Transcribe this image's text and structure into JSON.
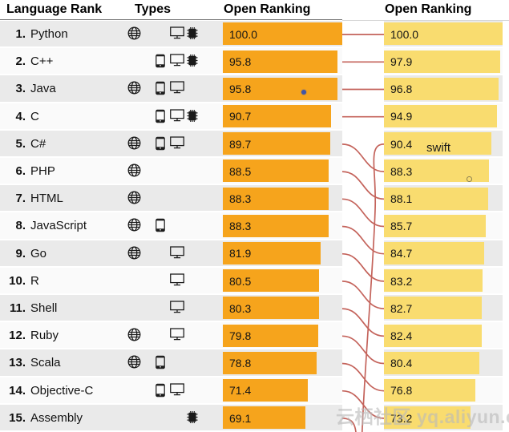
{
  "header": {
    "language_rank": "Language Rank",
    "types": "Types",
    "open_ranking_left": "Open Ranking",
    "open_ranking_right": "Open Ranking"
  },
  "colors": {
    "left_bar": "#F6A41C",
    "right_bar": "#F9DC6F",
    "row_odd": "#EAEAEA",
    "row_even": "#FAFAFA",
    "connector": "#C4635B"
  },
  "left_table": {
    "rows": [
      {
        "rank": "1.",
        "name": "Python",
        "types": [
          "globe-icon",
          "monitor-icon",
          "chip-icon"
        ],
        "value": "100.0",
        "score": 100.0
      },
      {
        "rank": "2.",
        "name": "C++",
        "types": [
          "phone-icon",
          "monitor-icon",
          "chip-icon"
        ],
        "value": "95.8",
        "score": 95.8
      },
      {
        "rank": "3.",
        "name": "Java",
        "types": [
          "globe-icon",
          "phone-icon",
          "monitor-icon"
        ],
        "value": "95.8",
        "score": 95.8
      },
      {
        "rank": "4.",
        "name": "C",
        "types": [
          "phone-icon",
          "monitor-icon",
          "chip-icon"
        ],
        "value": "90.7",
        "score": 90.7
      },
      {
        "rank": "5.",
        "name": "C#",
        "types": [
          "globe-icon",
          "phone-icon",
          "monitor-icon"
        ],
        "value": "89.7",
        "score": 89.7
      },
      {
        "rank": "6.",
        "name": "PHP",
        "types": [
          "globe-icon"
        ],
        "value": "88.5",
        "score": 88.5
      },
      {
        "rank": "7.",
        "name": "HTML",
        "types": [
          "globe-icon"
        ],
        "value": "88.3",
        "score": 88.3
      },
      {
        "rank": "8.",
        "name": "JavaScript",
        "types": [
          "globe-icon",
          "phone-icon"
        ],
        "value": "88.3",
        "score": 88.3
      },
      {
        "rank": "9.",
        "name": "Go",
        "types": [
          "globe-icon",
          "monitor-icon"
        ],
        "value": "81.9",
        "score": 81.9
      },
      {
        "rank": "10.",
        "name": "R",
        "types": [
          "monitor-icon"
        ],
        "value": "80.5",
        "score": 80.5
      },
      {
        "rank": "11.",
        "name": "Shell",
        "types": [
          "monitor-icon"
        ],
        "value": "80.3",
        "score": 80.3
      },
      {
        "rank": "12.",
        "name": "Ruby",
        "types": [
          "globe-icon",
          "monitor-icon"
        ],
        "value": "79.8",
        "score": 79.8
      },
      {
        "rank": "13.",
        "name": "Scala",
        "types": [
          "globe-icon",
          "phone-icon"
        ],
        "value": "78.8",
        "score": 78.8
      },
      {
        "rank": "14.",
        "name": "Objective-C",
        "types": [
          "phone-icon",
          "monitor-icon"
        ],
        "value": "71.4",
        "score": 71.4
      },
      {
        "rank": "15.",
        "name": "Assembly",
        "types": [
          "chip-icon"
        ],
        "value": "69.1",
        "score": 69.1
      }
    ]
  },
  "right_column": {
    "rows": [
      {
        "value": "100.0",
        "score": 100.0
      },
      {
        "value": "97.9",
        "score": 97.9
      },
      {
        "value": "96.8",
        "score": 96.8
      },
      {
        "value": "94.9",
        "score": 94.9
      },
      {
        "value": "90.4",
        "score": 90.4
      },
      {
        "value": "88.3",
        "score": 88.3
      },
      {
        "value": "88.1",
        "score": 88.1
      },
      {
        "value": "85.7",
        "score": 85.7
      },
      {
        "value": "84.7",
        "score": 84.7
      },
      {
        "value": "83.2",
        "score": 83.2
      },
      {
        "value": "82.7",
        "score": 82.7
      },
      {
        "value": "82.4",
        "score": 82.4
      },
      {
        "value": "80.4",
        "score": 80.4
      },
      {
        "value": "76.8",
        "score": 76.8
      },
      {
        "value": "73.2",
        "score": 73.2
      }
    ]
  },
  "connections": {
    "pairs": [
      [
        1,
        1
      ],
      [
        2,
        2
      ],
      [
        3,
        3
      ],
      [
        4,
        4
      ],
      [
        5,
        6
      ],
      [
        6,
        7
      ],
      [
        7,
        8
      ],
      [
        8,
        9
      ],
      [
        9,
        10
      ],
      [
        10,
        11
      ],
      [
        11,
        12
      ],
      [
        12,
        13
      ],
      [
        13,
        14
      ],
      [
        14,
        15
      ]
    ],
    "exit_bottom_left_rank": 15,
    "enter_bottom_right_rank": 5
  },
  "annotations": {
    "swift_label": "swift",
    "watermark": "云栖社区 yq.aliyun.com"
  },
  "chart_data": [
    {
      "type": "bar",
      "orientation": "horizontal",
      "title": "Open Ranking",
      "categories": [
        "Python",
        "C++",
        "Java",
        "C",
        "C#",
        "PHP",
        "HTML",
        "JavaScript",
        "Go",
        "R",
        "Shell",
        "Ruby",
        "Scala",
        "Objective-C",
        "Assembly"
      ],
      "values": [
        100.0,
        95.8,
        95.8,
        90.7,
        89.7,
        88.5,
        88.3,
        88.3,
        81.9,
        80.5,
        80.3,
        79.8,
        78.8,
        71.4,
        69.1
      ],
      "xlim": [
        0,
        100
      ],
      "bar_color": "#F6A41C"
    },
    {
      "type": "bar",
      "orientation": "horizontal",
      "title": "Open Ranking",
      "values": [
        100.0,
        97.9,
        96.8,
        94.9,
        90.4,
        88.3,
        88.1,
        85.7,
        84.7,
        83.2,
        82.7,
        82.4,
        80.4,
        76.8,
        73.2
      ],
      "xlim": [
        0,
        100
      ],
      "bar_color": "#F9DC6F",
      "annotations": [
        {
          "rank": 5,
          "label": "swift"
        }
      ]
    }
  ]
}
